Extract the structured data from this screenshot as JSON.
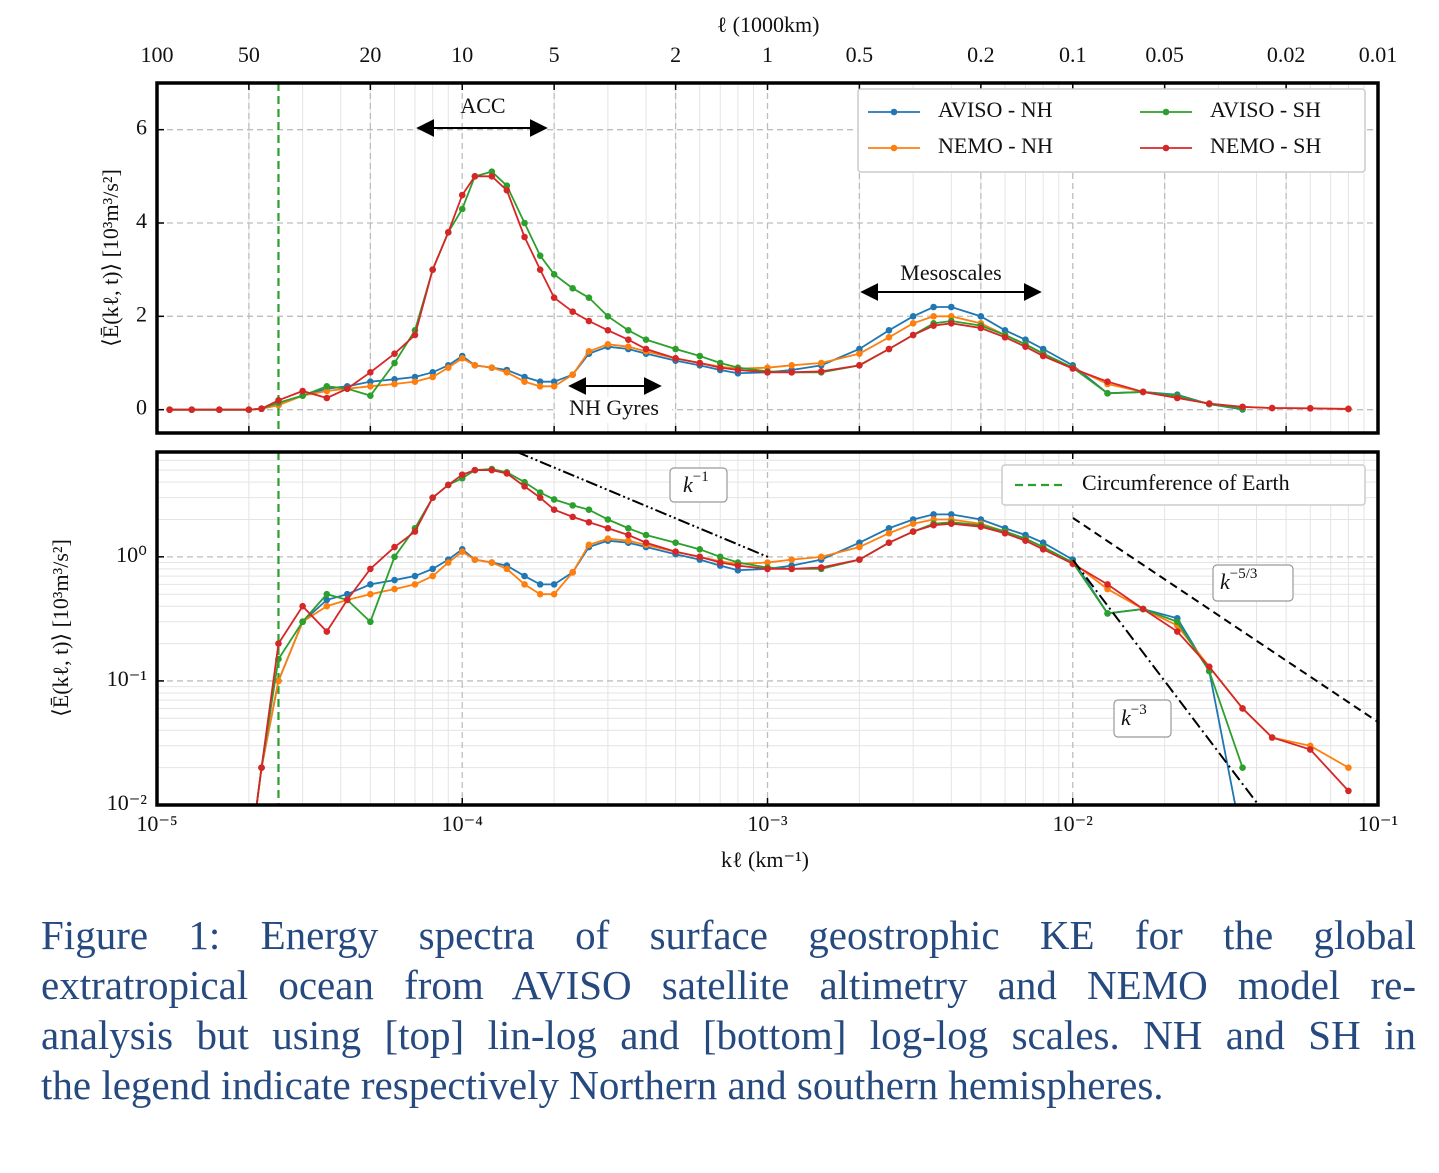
{
  "chart_data": {
    "type": "line",
    "xscale": "log",
    "x": [
      1.1e-05,
      1.3e-05,
      1.6e-05,
      2e-05,
      2.2e-05,
      2.5e-05,
      3e-05,
      3.6e-05,
      4.2e-05,
      5e-05,
      6e-05,
      7e-05,
      8e-05,
      9e-05,
      0.0001,
      0.00011,
      0.000125,
      0.00014,
      0.00016,
      0.00018,
      0.0002,
      0.00023,
      0.00026,
      0.0003,
      0.00035,
      0.0004,
      0.0005,
      0.0006,
      0.0007,
      0.0008,
      0.001,
      0.0012,
      0.0015,
      0.002,
      0.0025,
      0.003,
      0.0035,
      0.004,
      0.005,
      0.006,
      0.007,
      0.008,
      0.01,
      0.013,
      0.017,
      0.022,
      0.028,
      0.036,
      0.045,
      0.06,
      0.08
    ],
    "series": [
      {
        "name": "AVISO - NH",
        "color": "#1f77b4",
        "values": [
          0,
          0,
          0,
          0,
          0.02,
          0.1,
          0.3,
          0.45,
          0.5,
          0.6,
          0.65,
          0.7,
          0.8,
          0.95,
          1.15,
          0.95,
          0.9,
          0.85,
          0.7,
          0.6,
          0.6,
          0.75,
          1.2,
          1.35,
          1.3,
          1.2,
          1.05,
          0.95,
          0.85,
          0.78,
          0.8,
          0.85,
          0.95,
          1.3,
          1.7,
          2.0,
          2.2,
          2.2,
          2.0,
          1.7,
          1.5,
          1.3,
          0.95,
          0.35,
          0.38,
          0.32,
          0.12,
          0.005,
          null,
          null,
          null
        ]
      },
      {
        "name": "NEMO - NH",
        "color": "#ff7f0e",
        "values": [
          0,
          0,
          0,
          0,
          0.02,
          0.1,
          0.3,
          0.4,
          0.45,
          0.5,
          0.55,
          0.6,
          0.7,
          0.9,
          1.1,
          0.95,
          0.9,
          0.8,
          0.6,
          0.5,
          0.5,
          0.75,
          1.25,
          1.4,
          1.35,
          1.25,
          1.1,
          1.0,
          0.92,
          0.88,
          0.9,
          0.95,
          1.0,
          1.2,
          1.55,
          1.85,
          2.0,
          2.0,
          1.85,
          1.6,
          1.4,
          1.2,
          0.9,
          0.55,
          0.38,
          0.28,
          0.13,
          0.06,
          0.035,
          0.03,
          0.02
        ]
      },
      {
        "name": "AVISO - SH",
        "color": "#2ca02c",
        "values": [
          0,
          0,
          0,
          0,
          0.02,
          0.15,
          0.3,
          0.5,
          0.45,
          0.3,
          1.0,
          1.7,
          3.0,
          3.8,
          4.3,
          5.0,
          5.1,
          4.8,
          4.0,
          3.3,
          2.9,
          2.6,
          2.4,
          2.0,
          1.7,
          1.5,
          1.3,
          1.15,
          1.0,
          0.9,
          0.82,
          0.8,
          0.8,
          0.95,
          1.3,
          1.6,
          1.85,
          1.9,
          1.8,
          1.6,
          1.4,
          1.2,
          0.9,
          0.35,
          0.38,
          0.3,
          0.12,
          0.02,
          null,
          null,
          null
        ]
      },
      {
        "name": "NEMO - SH",
        "color": "#d62728",
        "values": [
          0,
          0,
          0,
          0,
          0.02,
          0.2,
          0.4,
          0.25,
          0.45,
          0.8,
          1.2,
          1.6,
          3.0,
          3.8,
          4.6,
          5.0,
          5.0,
          4.7,
          3.7,
          3.0,
          2.4,
          2.1,
          1.9,
          1.7,
          1.5,
          1.3,
          1.1,
          1.0,
          0.9,
          0.85,
          0.8,
          0.8,
          0.82,
          0.95,
          1.3,
          1.6,
          1.8,
          1.85,
          1.75,
          1.55,
          1.35,
          1.15,
          0.88,
          0.6,
          0.38,
          0.25,
          0.13,
          0.06,
          0.035,
          0.028,
          0.013
        ]
      }
    ],
    "xlabel": "kℓ (km⁻¹)",
    "xlim": [
      1e-05,
      0.1
    ],
    "xticks": [
      {
        "value": 1e-05,
        "label": "10⁻⁵"
      },
      {
        "value": 0.0001,
        "label": "10⁻⁴"
      },
      {
        "value": 0.001,
        "label": "10⁻³"
      },
      {
        "value": 0.01,
        "label": "10⁻²"
      },
      {
        "value": 0.1,
        "label": "10⁻¹"
      }
    ],
    "x2label": "ℓ (1000km)",
    "x2ticks": [
      {
        "value": 1e-05,
        "label": "100"
      },
      {
        "value": 2e-05,
        "label": "50"
      },
      {
        "value": 5e-05,
        "label": "20"
      },
      {
        "value": 0.0001,
        "label": "10"
      },
      {
        "value": 0.0002,
        "label": "5"
      },
      {
        "value": 0.0005,
        "label": "2"
      },
      {
        "value": 0.001,
        "label": "1"
      },
      {
        "value": 0.002,
        "label": "0.5"
      },
      {
        "value": 0.005,
        "label": "0.2"
      },
      {
        "value": 0.01,
        "label": "0.1"
      },
      {
        "value": 0.02,
        "label": "0.05"
      },
      {
        "value": 0.05,
        "label": "0.02"
      },
      {
        "value": 0.1,
        "label": "0.01"
      }
    ],
    "ylabel": "⟨Ē(kℓ, t)⟩ [10³m³/s²]",
    "panels": [
      {
        "yscale": "linear",
        "ylim": [
          -0.5,
          7
        ],
        "yticks": [
          0,
          2,
          4,
          6
        ],
        "legend": "upper right"
      },
      {
        "yscale": "log",
        "ylim": [
          0.01,
          7
        ],
        "yticks": [
          {
            "value": 0.01,
            "label": "10⁻²"
          },
          {
            "value": 0.1,
            "label": "10⁻¹"
          },
          {
            "value": 1,
            "label": "10⁰"
          }
        ],
        "legend": "upper right"
      }
    ],
    "annotations": [
      "ACC",
      "NH Gyres",
      "Mesoscales"
    ],
    "reference_lines": [
      {
        "base": "k",
        "exponent": "−1"
      },
      {
        "base": "k",
        "exponent": "−5/3"
      },
      {
        "base": "k",
        "exponent": "−3"
      }
    ],
    "circumference": {
      "name": "Circumference of Earth",
      "x": 2.5e-05,
      "color": "#2ca02c"
    },
    "grid": true
  },
  "caption": {
    "lines": [
      "Figure 1: Energy spectra of surface geostrophic KE for the global",
      "extratropical ocean from AVISO satellite altimetry and NEMO model re-",
      "analysis but using [top] lin-log and [bottom] log-log scales. NH and SH  in",
      "the legend indicate respectively Northern and southern hemispheres."
    ]
  }
}
